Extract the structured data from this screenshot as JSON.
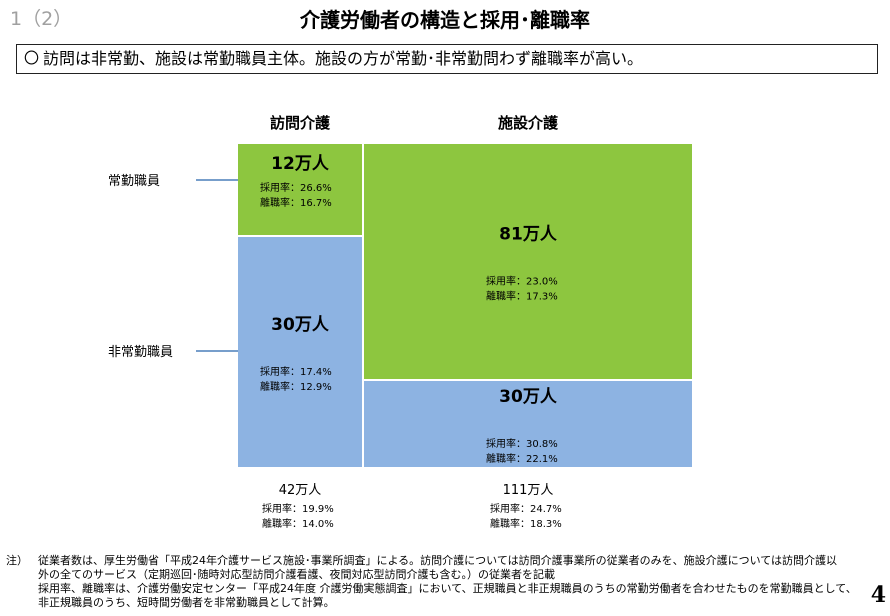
{
  "header": {
    "section": "1（2）",
    "title": "介護労働者の構造と採用･離職率"
  },
  "summary": {
    "bullet": "〇",
    "text": "訪問は非常勤、施設は常勤職員主体。施設の方が常勤･非常勤問わず離職率が高い。"
  },
  "chart_data": {
    "type": "mosaic",
    "columns": [
      "訪問介護",
      "施設介護"
    ],
    "rows": [
      "常勤職員",
      "非常勤職員"
    ],
    "colors": {
      "fulltime": "#8dc63f",
      "parttime": "#8db3e2",
      "leader": "#4a7eba"
    },
    "cells": [
      {
        "column": "訪問介護",
        "row": "常勤職員",
        "value_label": "12万人",
        "value": 12,
        "hire_label": "採用率：26.6%",
        "hire_rate": 26.6,
        "leave_label": "離職率：16.7%",
        "leave_rate": 16.7
      },
      {
        "column": "訪問介護",
        "row": "非常勤職員",
        "value_label": "30万人",
        "value": 30,
        "hire_label": "採用率：17.4%",
        "hire_rate": 17.4,
        "leave_label": "離職率：12.9%",
        "leave_rate": 12.9
      },
      {
        "column": "施設介護",
        "row": "常勤職員",
        "value_label": "81万人",
        "value": 81,
        "hire_label": "採用率：23.0%",
        "hire_rate": 23.0,
        "leave_label": "離職率：17.3%",
        "leave_rate": 17.3
      },
      {
        "column": "施設介護",
        "row": "非常勤職員",
        "value_label": "30万人",
        "value": 30,
        "hire_label": "採用率：30.8%",
        "hire_rate": 30.8,
        "leave_label": "離職率：22.1%",
        "leave_rate": 22.1
      }
    ],
    "totals": [
      {
        "column": "訪問介護",
        "value_label": "42万人",
        "value": 42,
        "hire_label": "採用率：19.9%",
        "hire_rate": 19.9,
        "leave_label": "離職率：14.0%",
        "leave_rate": 14.0
      },
      {
        "column": "施設介護",
        "value_label": "111万人",
        "value": 111,
        "hire_label": "採用率：24.7%",
        "hire_rate": 24.7,
        "leave_label": "離職率：18.3%",
        "leave_rate": 18.3
      }
    ]
  },
  "notes": {
    "mark": "注）",
    "lines": [
      "従業者数は、厚生労働省「平成24年介護サービス施設･事業所調査」による。訪問介護については訪問介護事業所の従業者のみを、施設介護については訪問介護以",
      "外の全てのサービス（定期巡回･随時対応型訪問介護看護、夜間対応型訪問介護も含む。）の従業者を記載",
      "採用率、離職率は、介護労働安定センター「平成24年度 介護労働実態調査」において、正規職員と非正規職員のうちの常勤労働者を合わせたものを常勤職員として、",
      "非正規職員のうち、短時間労働者を非常勤職員として計算。"
    ]
  },
  "page_number": "4"
}
